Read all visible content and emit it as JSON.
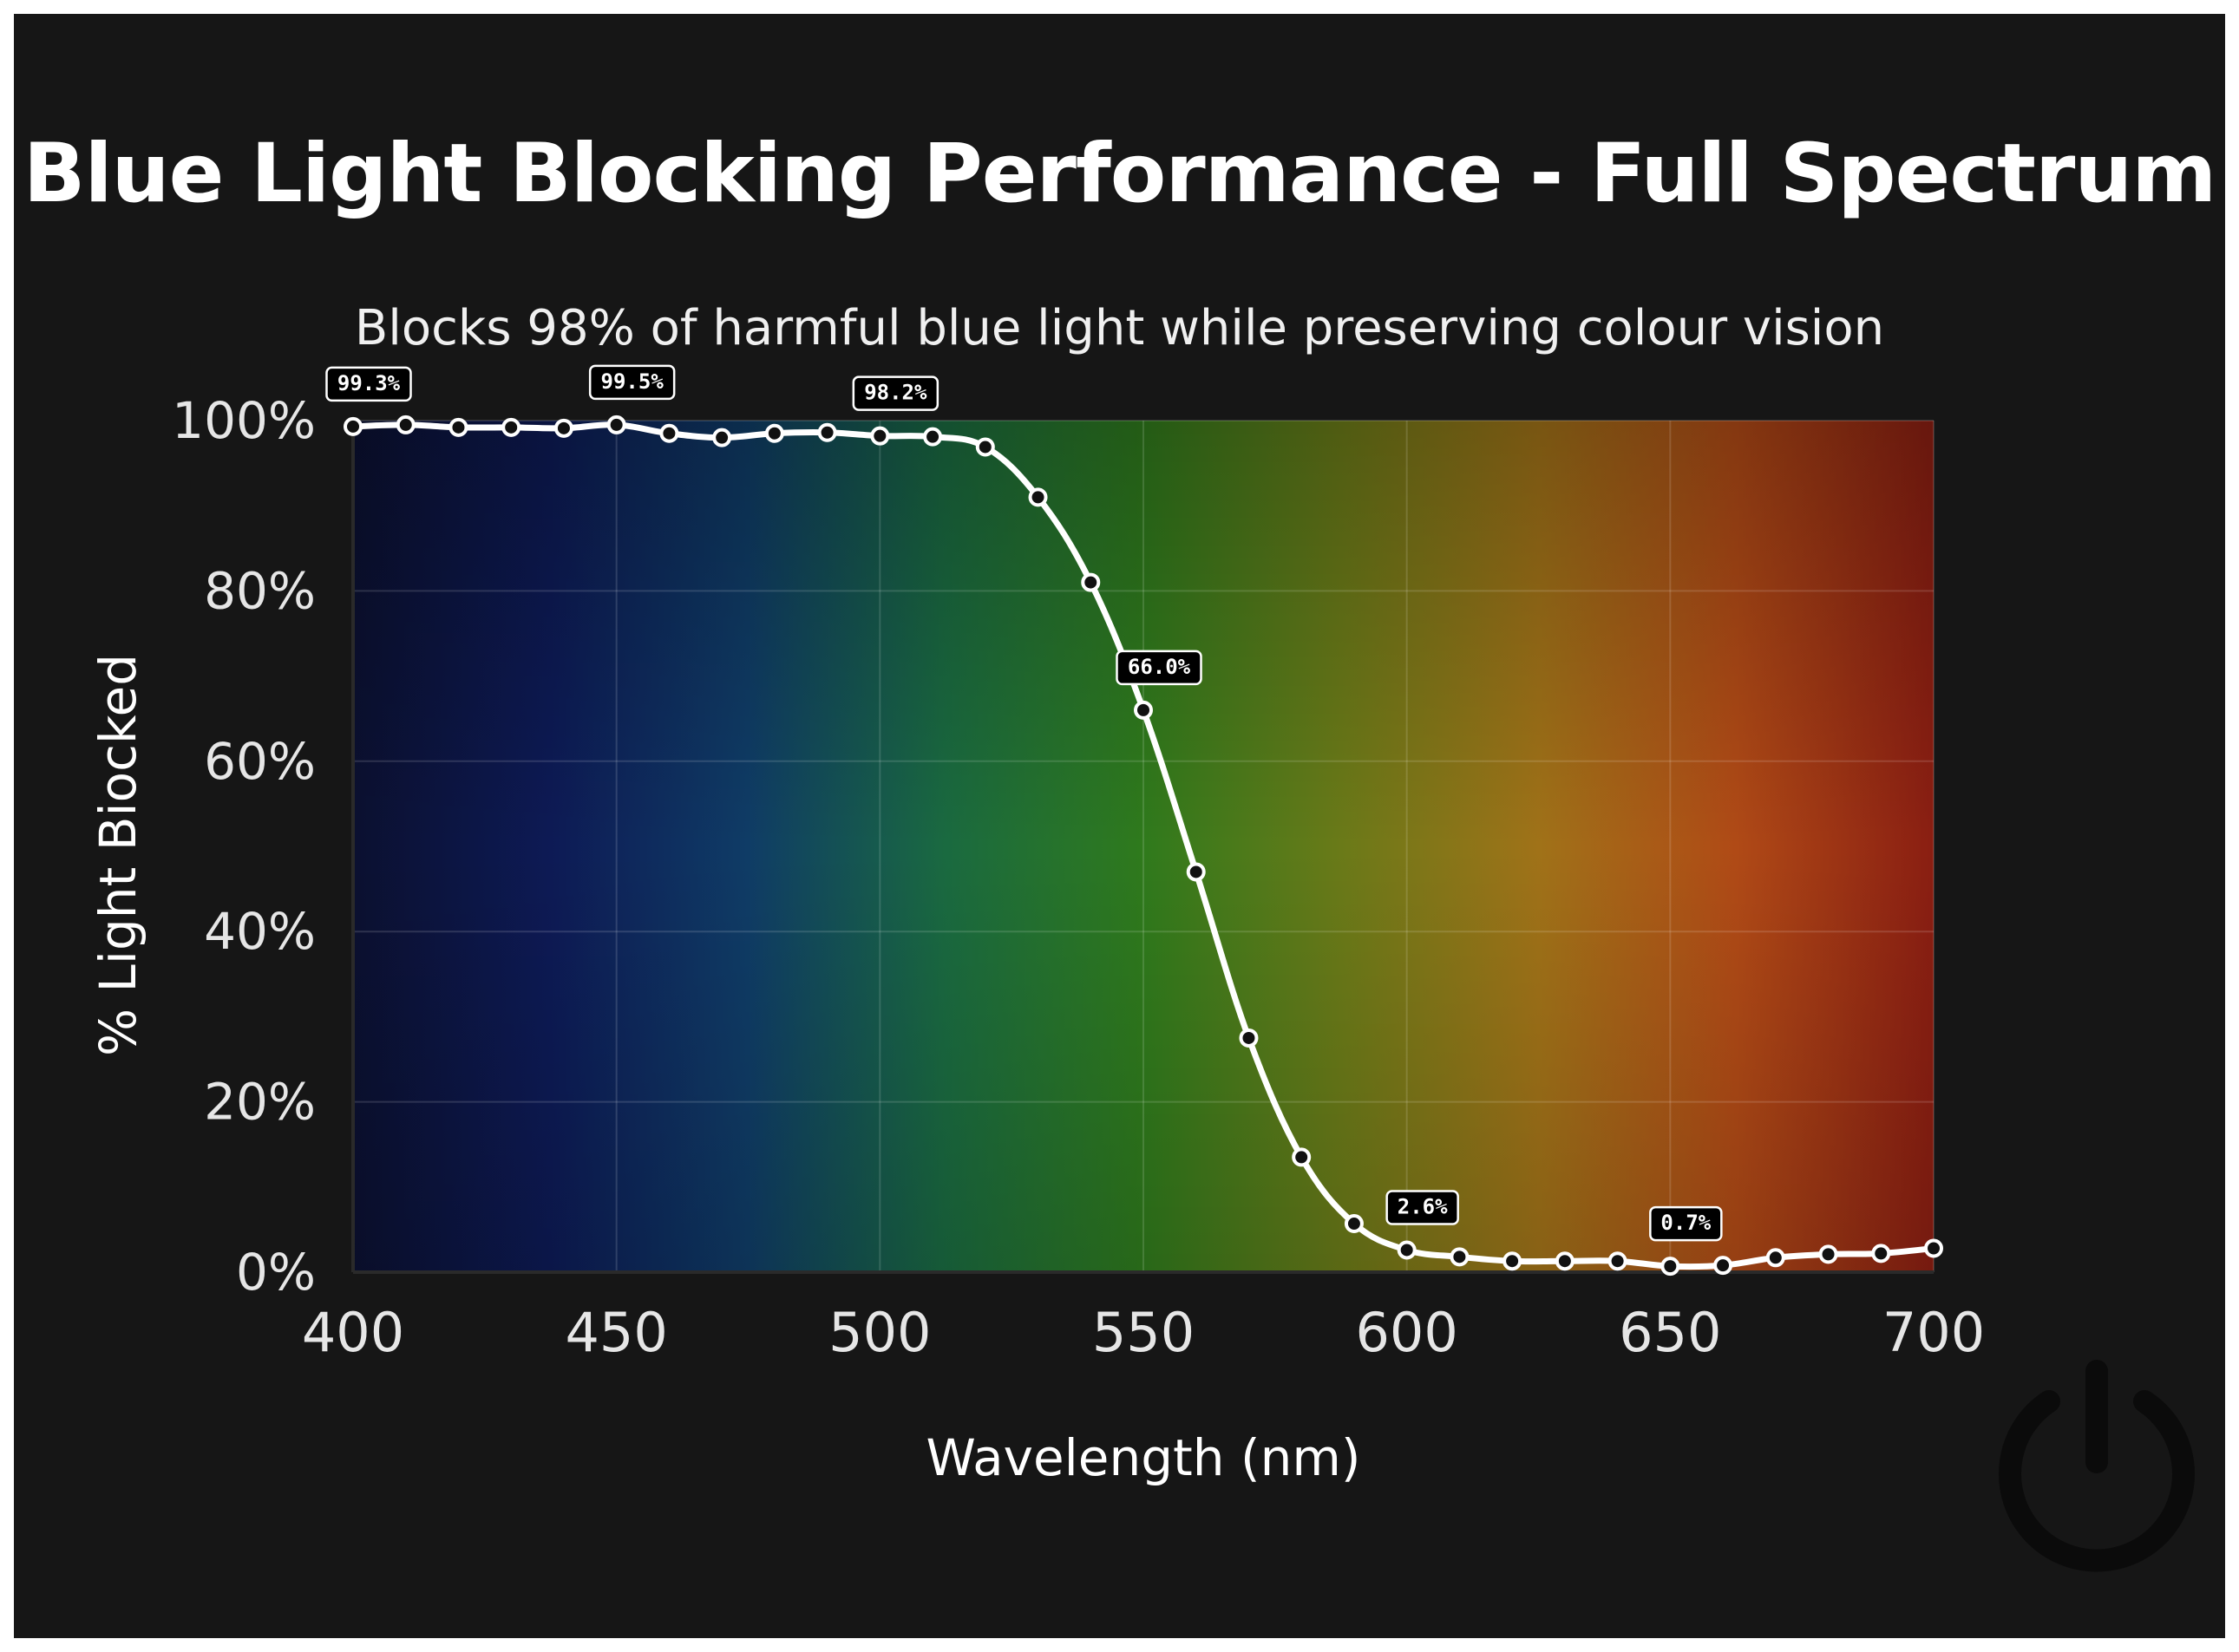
{
  "chart_data": {
    "type": "line",
    "title": "Blue Light Blocking Performance - Full Spectrum",
    "subtitle": "Blocks 98% of harmful blue light while preserving colour vision",
    "xlabel": "Wavelength (nm)",
    "ylabel": "% Light Biocked",
    "xlim": [
      400,
      700
    ],
    "ylim": [
      0,
      100
    ],
    "x_ticks": [
      400,
      450,
      500,
      550,
      600,
      650,
      700
    ],
    "x_tick_labels": [
      "400",
      "450",
      "500",
      "550",
      "600",
      "650",
      "700"
    ],
    "y_ticks": [
      0,
      20,
      40,
      60,
      80,
      100
    ],
    "y_tick_labels": [
      "0%",
      "20%",
      "40%",
      "60%",
      "80%",
      "100%"
    ],
    "grid": true,
    "legend": "none",
    "background_gradient": [
      "#0b1030",
      "#0d1a55",
      "#0f3c66",
      "#1a6a40",
      "#2f7a1c",
      "#6a7a18",
      "#a07218",
      "#b04a16",
      "#8a1e12"
    ],
    "line_color": "#ffffff",
    "x": [
      400,
      410,
      420,
      430,
      440,
      450,
      460,
      470,
      480,
      490,
      500,
      510,
      520,
      530,
      540,
      550,
      560,
      570,
      580,
      590,
      600,
      610,
      620,
      630,
      640,
      650,
      660,
      670,
      680,
      690,
      700
    ],
    "y": [
      99.3,
      99.5,
      99.2,
      99.2,
      99.1,
      99.5,
      98.5,
      98.0,
      98.5,
      98.6,
      98.2,
      98.1,
      96.9,
      91.0,
      81.0,
      66.0,
      47.0,
      27.5,
      13.5,
      5.7,
      2.6,
      1.8,
      1.3,
      1.3,
      1.3,
      0.7,
      0.8,
      1.7,
      2.1,
      2.2,
      2.8
    ],
    "data_labels": [
      {
        "x": 400,
        "y": 99.3,
        "text": "99.3%"
      },
      {
        "x": 450,
        "y": 99.5,
        "text": "99.5%"
      },
      {
        "x": 500,
        "y": 98.2,
        "text": "98.2%"
      },
      {
        "x": 550,
        "y": 66.0,
        "text": "66.0%"
      },
      {
        "x": 600,
        "y": 2.6,
        "text": "2.6%"
      },
      {
        "x": 650,
        "y": 0.7,
        "text": "0.7%"
      }
    ]
  },
  "logo": {
    "icon": "power-icon"
  }
}
